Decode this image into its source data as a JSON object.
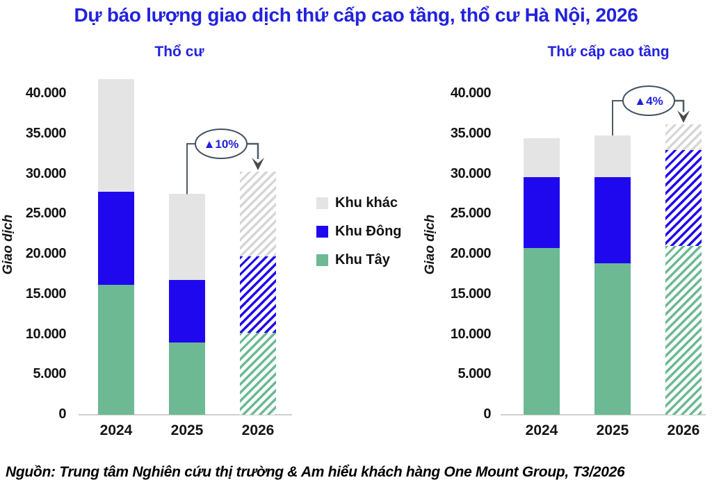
{
  "title": "Dự báo lượng giao dịch thứ cấp cao tầng, thổ cư Hà Nội, 2026",
  "source": "Nguồn: Trung tâm Nghiên cứu thị trường & Am hiểu khách hàng One Mount Group, T3/2026",
  "colors": {
    "title_blue": "#2222dd",
    "khu_khac": "#e4e4e4",
    "khu_dong": "#2008ee",
    "khu_tay": "#6cb994",
    "hatch_khac": "#d6d6d6",
    "axis_line": "#cfcfcf",
    "annotation_text": "#2020e0",
    "annotation_bubble_border": "#3f5160",
    "connector": "#4f5a63",
    "arrow": "#4a4a4a"
  },
  "legend": [
    {
      "label": "Khu khác",
      "color": "#e4e4e4"
    },
    {
      "label": "Khu Đông",
      "color": "#2008ee"
    },
    {
      "label": "Khu Tây",
      "color": "#6cb994"
    }
  ],
  "chart_data": [
    {
      "type": "bar",
      "stacked": true,
      "title": "Thổ cư",
      "ylabel": "Giao dịch",
      "categories": [
        "2024",
        "2025",
        "2026"
      ],
      "hatched_category": "2026",
      "ylim": [
        0,
        40000
      ],
      "ytick_values": [
        0,
        5000,
        10000,
        15000,
        20000,
        25000,
        30000,
        35000,
        40000
      ],
      "ytick_labels": [
        "0",
        "5.000",
        "10.000",
        "15.000",
        "20.000",
        "25.000",
        "30.000",
        "35.000",
        "40.000"
      ],
      "series": [
        {
          "name": "Khu Tây",
          "values": [
            16200,
            9000,
            10200
          ]
        },
        {
          "name": "Khu Đông",
          "values": [
            11600,
            7800,
            9500
          ]
        },
        {
          "name": "Khu khác",
          "values": [
            14000,
            10700,
            10600
          ]
        }
      ],
      "totals": [
        41800,
        27500,
        30300
      ],
      "annotation": {
        "text": "▲10%",
        "from_category": "2025",
        "to_category": "2026"
      }
    },
    {
      "type": "bar",
      "stacked": true,
      "title": "Thứ cấp cao tầng",
      "ylabel": "Giao dịch",
      "categories": [
        "2024",
        "2025",
        "2026"
      ],
      "hatched_category": "2026",
      "ylim": [
        0,
        40000
      ],
      "ytick_values": [
        0,
        5000,
        10000,
        15000,
        20000,
        25000,
        30000,
        35000,
        40000
      ],
      "ytick_labels": [
        "0",
        "5.000",
        "10.000",
        "15.000",
        "20.000",
        "25.000",
        "30.000",
        "35.000",
        "40.000"
      ],
      "series": [
        {
          "name": "Khu Tây",
          "values": [
            20800,
            18900,
            21000
          ]
        },
        {
          "name": "Khu Đông",
          "values": [
            8800,
            10700,
            12000
          ]
        },
        {
          "name": "Khu khác",
          "values": [
            4900,
            5200,
            3200
          ]
        }
      ],
      "totals": [
        34500,
        34800,
        36200
      ],
      "annotation": {
        "text": "▲4%",
        "from_category": "2025",
        "to_category": "2026"
      }
    }
  ]
}
